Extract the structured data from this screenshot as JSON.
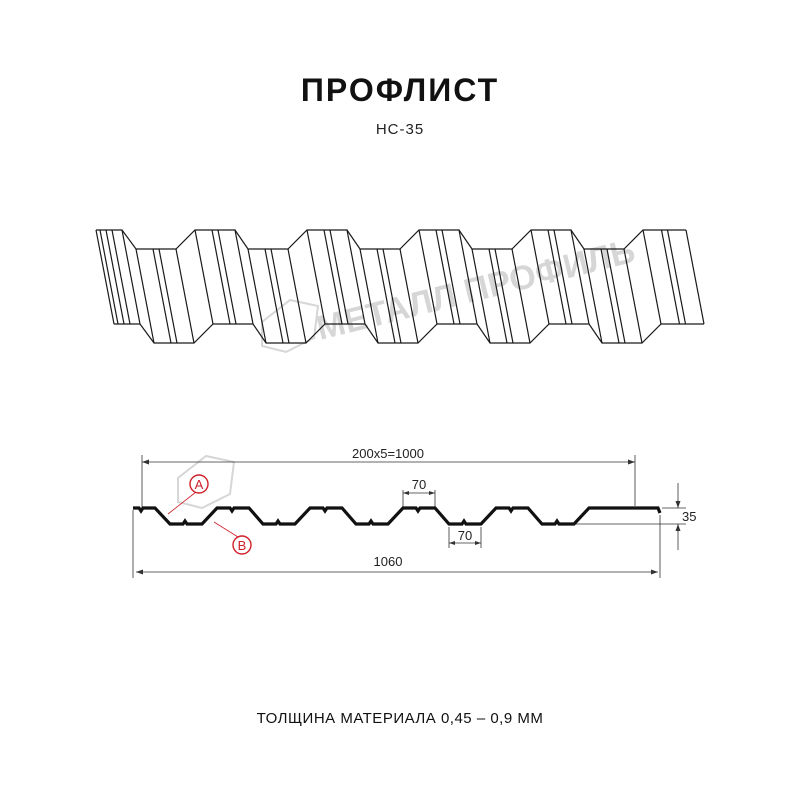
{
  "header": {
    "title": "ПРОФЛИСТ",
    "subtitle": "НС-35"
  },
  "watermark": {
    "text": "МЕТАЛЛ ПРОФИЛЬ",
    "color": "#d6d6d6"
  },
  "dimensions": {
    "pitch_total": "200x5=1000",
    "top_width": "70",
    "bottom_width": "70",
    "height": "35",
    "overall_width": "1060"
  },
  "callouts": {
    "a": "A",
    "b": "B",
    "color": "#d0202a"
  },
  "footer": {
    "thickness": "ТОЛЩИНА МАТЕРИАЛА 0,45 – 0,9 ММ"
  }
}
